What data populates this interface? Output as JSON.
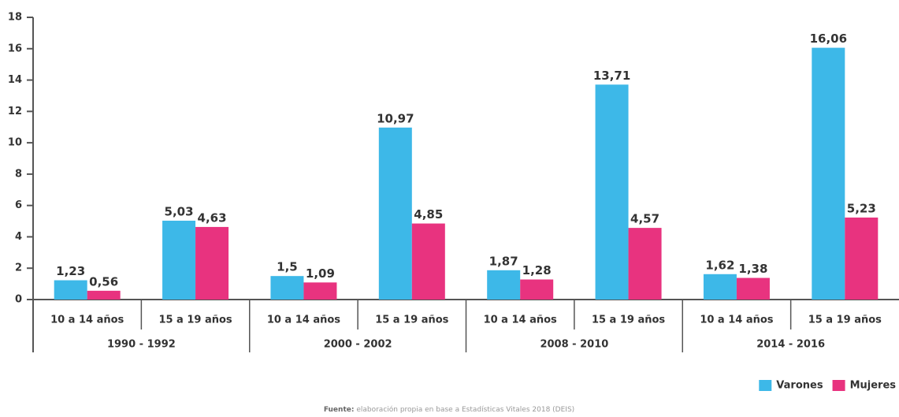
{
  "chart_data": {
    "type": "bar",
    "categories": [
      "10 a 14 años",
      "15 a 19 años",
      "10 a 14 años",
      "15 a 19 años",
      "10 a 14 años",
      "15 a 19 años",
      "10 a 14 años",
      "15 a 19 años"
    ],
    "groups": [
      "1990 - 1992",
      "2000 - 2002",
      "2008 - 2010",
      "2014 - 2016"
    ],
    "series": [
      {
        "name": "Varones",
        "color": "#3db8e8",
        "values": [
          1.23,
          5.03,
          1.5,
          10.97,
          1.87,
          13.71,
          1.62,
          16.06
        ],
        "value_labels": [
          "1,23",
          "5,03",
          "1,5",
          "10,97",
          "1,87",
          "13,71",
          "1,62",
          "16,06"
        ]
      },
      {
        "name": "Mujeres",
        "color": "#e8337f",
        "values": [
          0.56,
          4.63,
          1.09,
          4.85,
          1.28,
          4.57,
          1.38,
          5.23
        ],
        "value_labels": [
          "0,56",
          "4,63",
          "1,09",
          "4,85",
          "1,28",
          "4,57",
          "1,38",
          "5,23"
        ]
      }
    ],
    "ylim": [
      0,
      18
    ],
    "yticks": [
      0,
      2,
      4,
      6,
      8,
      10,
      12,
      14,
      16,
      18
    ],
    "grid": false,
    "source_label": "Fuente:",
    "source_text": "elaboración propia en base a Estadísticas Vitales 2018 (DEIS)"
  }
}
